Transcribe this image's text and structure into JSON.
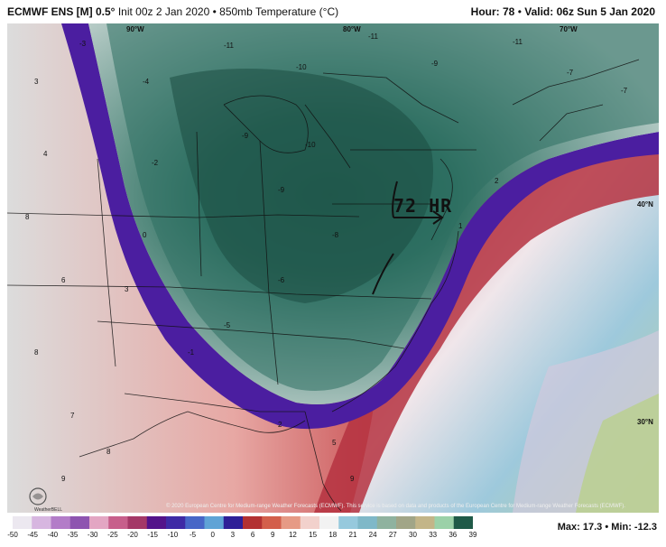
{
  "header": {
    "model": "ECMWF ENS [M] 0.5",
    "init": "Init 00z 2 Jan 2020",
    "field": "850mb Temperature (°C)",
    "hour_label": "Hour: 78",
    "valid_label": "Valid: 06z Sun 5 Jan 2020"
  },
  "annotation": {
    "text": "72 HR"
  },
  "longitude_labels": [
    "90°W",
    "80°W",
    "70°W"
  ],
  "latitude_labels": [
    "40°N",
    "30°N"
  ],
  "copyright": "© 2020 European Centre for Medium-range Weather Forecasts (ECMWF). This service is based on data and products of the European Centre for Medium-range Weather Forecasts (ECMWF).",
  "logo_text": "WeatherBELL",
  "colorbar": {
    "ticks": [
      "-50",
      "-45",
      "-40",
      "-35",
      "-30",
      "-25",
      "-20",
      "-15",
      "-10",
      "-5",
      "0",
      "3",
      "6",
      "9",
      "12",
      "15",
      "18",
      "21",
      "24",
      "27",
      "30",
      "33",
      "36",
      "39"
    ],
    "colors": [
      "#ece8f0",
      "#d7b6e0",
      "#b37cc8",
      "#8e54b0",
      "#e3a6c3",
      "#c75f8b",
      "#a43867",
      "#53138a",
      "#3e2aa5",
      "#4766c7",
      "#5fa3d6",
      "#2e1f97",
      "#b33132",
      "#d35f4b",
      "#e69a85",
      "#f2d1cc",
      "#f2f2f2",
      "#96c9dd",
      "#7fb8c8",
      "#8fb29f",
      "#a1a587",
      "#c3b588",
      "#9bd1a8",
      "#1f5a48"
    ]
  },
  "maxmin": "Max: 17.3 • Min: -12.3",
  "station_values": [
    {
      "v": "-3"
    },
    {
      "v": "-2"
    },
    {
      "v": "-4"
    },
    {
      "v": "-6"
    },
    {
      "v": "-9"
    },
    {
      "v": "-10"
    },
    {
      "v": "-11"
    },
    {
      "v": "-8"
    },
    {
      "v": "-7"
    },
    {
      "v": "-5"
    },
    {
      "v": "-1"
    },
    {
      "v": "0"
    },
    {
      "v": "1"
    },
    {
      "v": "2"
    },
    {
      "v": "3"
    },
    {
      "v": "4"
    },
    {
      "v": "5"
    },
    {
      "v": "6"
    },
    {
      "v": "7"
    },
    {
      "v": "8"
    },
    {
      "v": "9"
    }
  ]
}
